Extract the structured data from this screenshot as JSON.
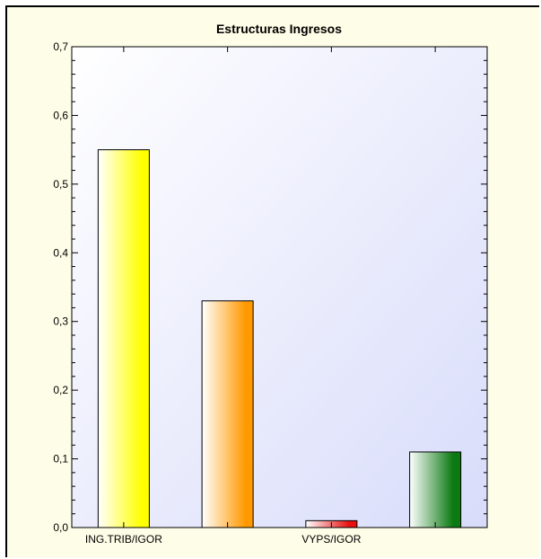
{
  "chart_data": {
    "type": "bar",
    "title": "Estructuras Ingresos",
    "xlabel": "",
    "ylabel": "",
    "ylim": [
      0,
      0.7
    ],
    "yticks": [
      0,
      0.1,
      0.2,
      0.3,
      0.4,
      0.5,
      0.6,
      0.7
    ],
    "ytick_labels": [
      "0,0",
      "0,1",
      "0,2",
      "0,3",
      "0,4",
      "0,5",
      "0,6",
      "0,7"
    ],
    "categories": [
      "ING.TRIB/IGOR",
      "",
      "VYPS/IGOR",
      ""
    ],
    "values": [
      0.55,
      0.33,
      0.01,
      0.11
    ],
    "colors": [
      "#ffff00",
      "#ff9900",
      "#e81010",
      "#0b7a12"
    ],
    "grid": false,
    "legend": "none"
  }
}
